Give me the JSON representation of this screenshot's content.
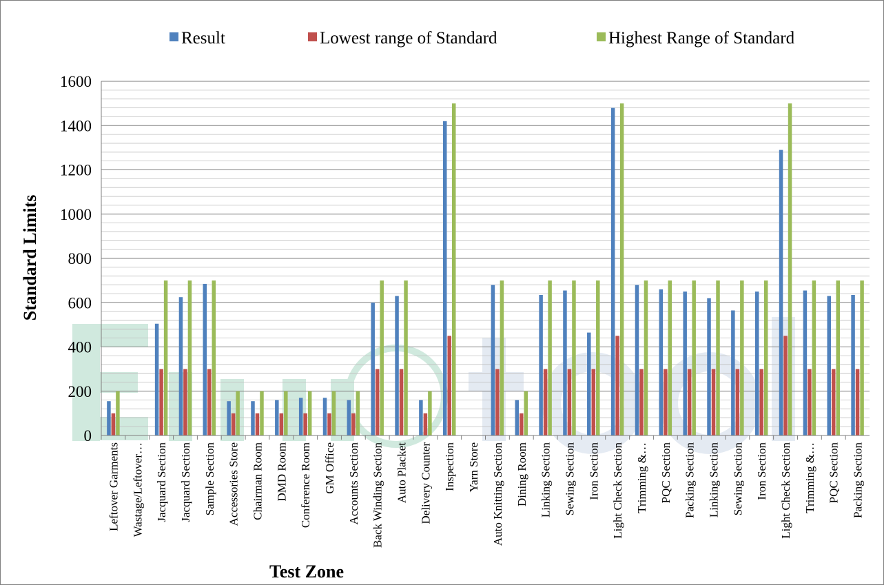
{
  "chart_data": {
    "type": "bar",
    "xlabel": "Test Zone",
    "ylabel": "Standard Limits",
    "ylim": [
      0,
      1600
    ],
    "yticks": [
      0,
      200,
      400,
      600,
      800,
      1000,
      1200,
      1400,
      1600
    ],
    "grid": "horizontal minor + major",
    "legend_position": "top",
    "categories": [
      "Leftover Garments",
      "Wastage/Leftover…",
      "Jacquard Section",
      "Jacquard Section",
      "Sample Section",
      "Accessories Store",
      "Chairman Room",
      "DMD Room",
      "Conference Room",
      "GM Office",
      "Accounts Section",
      "Back Winding Section",
      "Auto Placket",
      "Delivery Counter",
      "Inspection",
      "Yarn Store",
      "Auto Knitting Section",
      "Dining Room",
      "Linking Section",
      "Sewing Section",
      "Iron Section",
      "Light Check Section",
      "Trimming &…",
      "PQC Section",
      "Packing Section",
      "Linking Section",
      "Sewing Section",
      "Iron Section",
      "Light Check Section",
      "Trimming &…",
      "PQC Section",
      "Packing Section"
    ],
    "series": [
      {
        "name": "Result",
        "color": "#4f81bd",
        "values": [
          155,
          0,
          505,
          625,
          685,
          155,
          155,
          160,
          170,
          170,
          160,
          600,
          630,
          160,
          1420,
          0,
          680,
          160,
          635,
          655,
          465,
          1480,
          680,
          660,
          650,
          620,
          565,
          650,
          1290,
          655,
          630,
          635
        ]
      },
      {
        "name": "Lowest range of Standard",
        "color": "#c0504d",
        "values": [
          100,
          0,
          300,
          300,
          300,
          100,
          100,
          100,
          100,
          100,
          100,
          300,
          300,
          100,
          450,
          0,
          300,
          100,
          300,
          300,
          300,
          450,
          300,
          300,
          300,
          300,
          300,
          300,
          450,
          300,
          300,
          300
        ]
      },
      {
        "name": "Highest Range of Standard",
        "color": "#9bbb59",
        "values": [
          200,
          0,
          700,
          700,
          700,
          200,
          200,
          200,
          200,
          200,
          200,
          700,
          700,
          200,
          1500,
          0,
          700,
          200,
          700,
          700,
          700,
          1500,
          700,
          700,
          700,
          700,
          700,
          700,
          1500,
          700,
          700,
          700
        ]
      }
    ]
  },
  "watermark": {
    "color": "#2e9e6e"
  }
}
